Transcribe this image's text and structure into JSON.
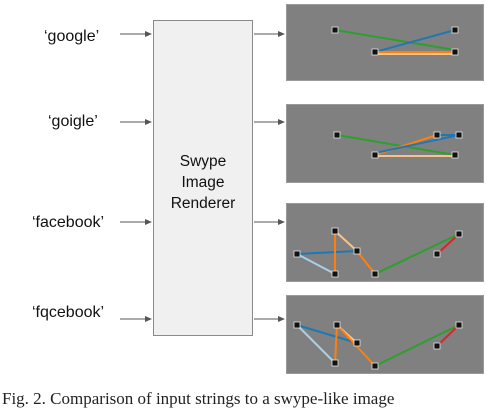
{
  "inputs": [
    {
      "label": "‘google’"
    },
    {
      "label": "‘goigle’"
    },
    {
      "label": "‘facebook’"
    },
    {
      "label": "‘fqcebook’"
    }
  ],
  "renderer": {
    "label": "Swype\nImage\nRenderer"
  },
  "caption": "Fig. 2.  Comparison of input strings to a swype-like image",
  "colors": {
    "panel_bg": "#808080",
    "node": "#111111",
    "node_border": "#e6e6e6",
    "stroke_green": "#2ca02c",
    "stroke_blue": "#1f77b4",
    "stroke_orange": "#ff7f0e",
    "stroke_light_blue": "#a8cfe8",
    "stroke_red": "#d62728",
    "stroke_tan": "#f5c48a"
  }
}
